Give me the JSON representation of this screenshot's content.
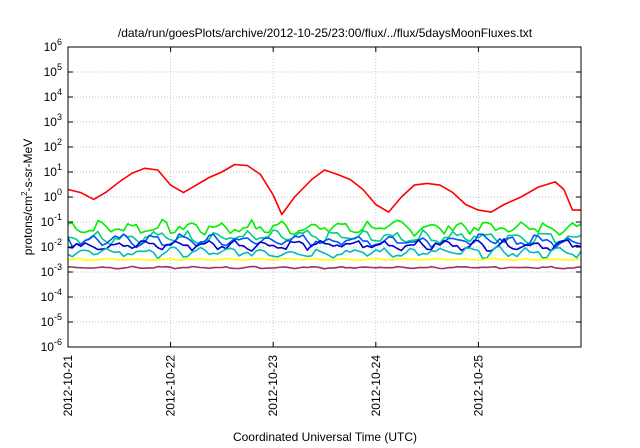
{
  "chart_data": {
    "type": "line",
    "title": "/data/run/goesPlots/archive/2012-10-25/23:00/flux/../flux/5daysMoonFluxes.txt",
    "xlabel": "Coordinated Universal Time (UTC)",
    "ylabel": {
      "base": "protons/cm",
      "sup": "2",
      "rest": "-s-sr-MeV"
    },
    "yscale": "log",
    "ylim_exp": [
      -6,
      6
    ],
    "y_ticks": [
      {
        "base": "10",
        "exp": "-6"
      },
      {
        "base": "10",
        "exp": "-5"
      },
      {
        "base": "10",
        "exp": "-4"
      },
      {
        "base": "10",
        "exp": "-3"
      },
      {
        "base": "10",
        "exp": "-2"
      },
      {
        "base": "10",
        "exp": "-1"
      },
      {
        "base": "10",
        "exp": "0"
      },
      {
        "base": "10",
        "exp": "1"
      },
      {
        "base": "10",
        "exp": "2"
      },
      {
        "base": "10",
        "exp": "3"
      },
      {
        "base": "10",
        "exp": "4"
      },
      {
        "base": "10",
        "exp": "5"
      },
      {
        "base": "10",
        "exp": "6"
      }
    ],
    "x_ticks": [
      "2012-10-21",
      "2012-10-22",
      "2012-10-23",
      "2012-10-24",
      "2012-10-25"
    ],
    "xlim": [
      "2012-10-21T00:00",
      "2012-10-26T00:00"
    ],
    "grid": true,
    "series": [
      {
        "color": "#ff0000",
        "points": [
          [
            "2012-10-21T00:00",
            2.0
          ],
          [
            "2012-10-21T03:00",
            1.5
          ],
          [
            "2012-10-21T06:00",
            0.8
          ],
          [
            "2012-10-21T09:00",
            1.6
          ],
          [
            "2012-10-21T12:00",
            4.0
          ],
          [
            "2012-10-21T15:00",
            9.0
          ],
          [
            "2012-10-21T18:00",
            14.0
          ],
          [
            "2012-10-21T21:00",
            12.0
          ],
          [
            "2012-10-22T00:00",
            3.0
          ],
          [
            "2012-10-22T03:00",
            1.5
          ],
          [
            "2012-10-22T06:00",
            3.0
          ],
          [
            "2012-10-22T09:00",
            6.0
          ],
          [
            "2012-10-22T12:00",
            10.0
          ],
          [
            "2012-10-22T15:00",
            20.0
          ],
          [
            "2012-10-22T18:00",
            18.0
          ],
          [
            "2012-10-22T21:00",
            8.0
          ],
          [
            "2012-10-23T00:00",
            1.2
          ],
          [
            "2012-10-23T02:00",
            0.2
          ],
          [
            "2012-10-23T05:00",
            1.0
          ],
          [
            "2012-10-23T09:00",
            5.0
          ],
          [
            "2012-10-23T12:00",
            12.0
          ],
          [
            "2012-10-23T15:00",
            8.0
          ],
          [
            "2012-10-23T18:00",
            5.0
          ],
          [
            "2012-10-23T21:00",
            2.0
          ],
          [
            "2012-10-24T00:00",
            0.5
          ],
          [
            "2012-10-24T03:00",
            0.25
          ],
          [
            "2012-10-24T06:00",
            1.0
          ],
          [
            "2012-10-24T09:00",
            3.0
          ],
          [
            "2012-10-24T12:00",
            3.5
          ],
          [
            "2012-10-24T15:00",
            3.0
          ],
          [
            "2012-10-24T18:00",
            1.5
          ],
          [
            "2012-10-24T21:00",
            0.5
          ],
          [
            "2012-10-25T00:00",
            0.3
          ],
          [
            "2012-10-25T03:00",
            0.25
          ],
          [
            "2012-10-25T06:00",
            0.5
          ],
          [
            "2012-10-25T10:00",
            1.0
          ],
          [
            "2012-10-25T14:00",
            2.5
          ],
          [
            "2012-10-25T18:00",
            4.0
          ],
          [
            "2012-10-25T20:00",
            2.0
          ],
          [
            "2012-10-25T22:00",
            0.3
          ],
          [
            "2012-10-26T00:00",
            0.3
          ]
        ]
      },
      {
        "color": "#00ee00",
        "level": 0.06,
        "jitter": 0.35
      },
      {
        "color": "#00cc88",
        "level": 0.025,
        "jitter": 0.3
      },
      {
        "color": "#0055ff",
        "level": 0.018,
        "jitter": 0.3
      },
      {
        "color": "#0000cc",
        "level": 0.012,
        "jitter": 0.25
      },
      {
        "color": "#00bbbb",
        "level": 0.006,
        "jitter": 0.25
      },
      {
        "color": "#ffff00",
        "level": 0.0032,
        "jitter": 0.05
      },
      {
        "color": "#993366",
        "level": 0.0015,
        "jitter": 0.05
      }
    ]
  }
}
